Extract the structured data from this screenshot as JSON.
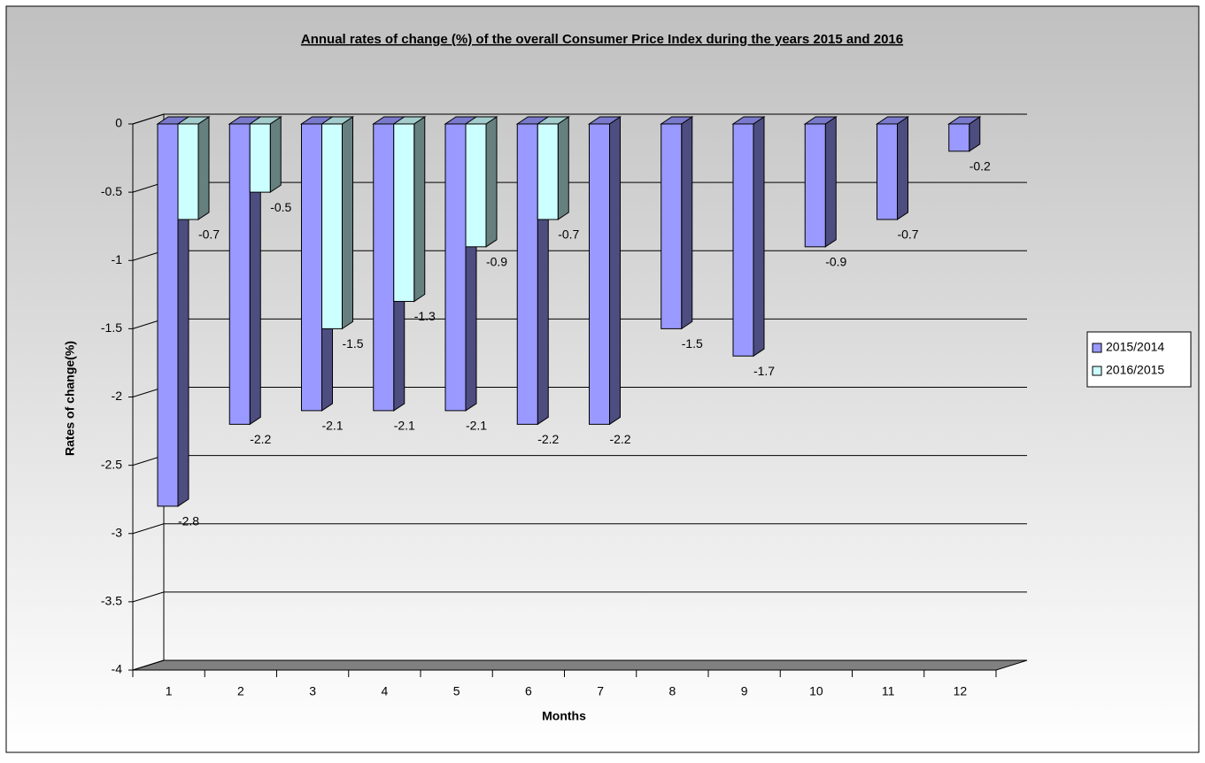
{
  "chart_data": {
    "type": "bar3d",
    "title": "Annual rates of change (%) of the overall Consumer Price Index during the years 2015 and 2016",
    "x_label": "Months",
    "y_label": "Rates of change(%)",
    "categories": [
      1,
      2,
      3,
      4,
      5,
      6,
      7,
      8,
      9,
      10,
      11,
      12
    ],
    "series": [
      {
        "name": "2015/2014",
        "color": "#9999ff",
        "values": [
          -2.8,
          -2.2,
          -2.1,
          -2.1,
          -2.1,
          -2.2,
          -2.2,
          -1.5,
          -1.7,
          -0.9,
          -0.7,
          -0.2
        ]
      },
      {
        "name": "2016/2015",
        "color": "#ccffff",
        "values": [
          -0.7,
          -0.5,
          -1.5,
          -1.3,
          -0.9,
          -0.7,
          null,
          null,
          null,
          null,
          null,
          null
        ]
      }
    ],
    "ylim": [
      -4,
      0
    ],
    "yticks": [
      0,
      -0.5,
      -1,
      -1.5,
      -2,
      -2.5,
      -3,
      -3.5,
      -4
    ],
    "grid": true,
    "legend": "right"
  }
}
